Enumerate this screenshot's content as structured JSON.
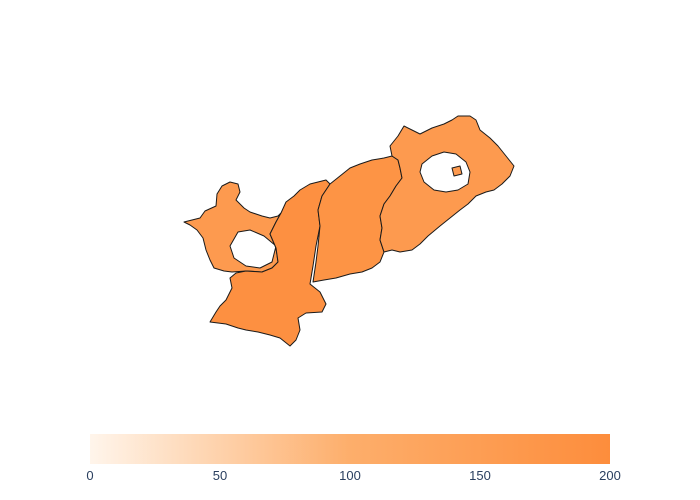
{
  "colors": {
    "scale_low": "#fff5eb",
    "scale_mid": "#fdae6b",
    "scale_high": "#fd8d3c",
    "region_border": "#1a1a1a",
    "tick_text": "#2a3f5f"
  },
  "map": {
    "regions": [
      {
        "id": "region-west",
        "value": 160
      },
      {
        "id": "region-south-central",
        "value": 190
      },
      {
        "id": "region-central",
        "value": 180
      },
      {
        "id": "region-east",
        "value": 160
      }
    ]
  },
  "colorbar": {
    "min": 0,
    "max": 200,
    "ticks": [
      "0",
      "50",
      "100",
      "150",
      "200"
    ]
  }
}
